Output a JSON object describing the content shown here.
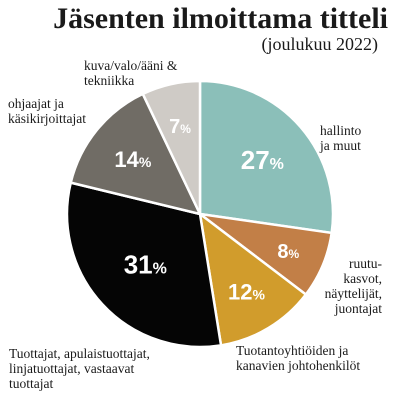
{
  "chart_data": {
    "type": "pie",
    "title": "Jäsenten ilmoittama titteli",
    "subtitle": "(joulukuu 2022)",
    "slices": [
      {
        "label": "hallinto\nja muut",
        "value": 27,
        "display": "27",
        "color": "#8bbfb9"
      },
      {
        "label": "ruutu-\nkasvot,\nnäyttelijät,\njuontajat",
        "value": 8,
        "display": "8",
        "color": "#c27f47"
      },
      {
        "label": "Tuotantoyhtiöiden ja\nkanavien johtohenkilöt",
        "value": 12,
        "display": "12",
        "color": "#d19c2c"
      },
      {
        "label": "Tuottajat, apulaistuottajat,\nlinjatuottajat, vastaavat\ntuottajat",
        "value": 31,
        "display": "31",
        "color": "#050505"
      },
      {
        "label": "ohjaajat ja\nkäsikirjoittajat",
        "value": 14,
        "display": "14",
        "color": "#706c65"
      },
      {
        "label": "kuva/valo/ääni &\ntekniikka",
        "value": 7,
        "display": "7",
        "color": "#cfcbc6"
      }
    ],
    "percent_symbol": "%"
  }
}
